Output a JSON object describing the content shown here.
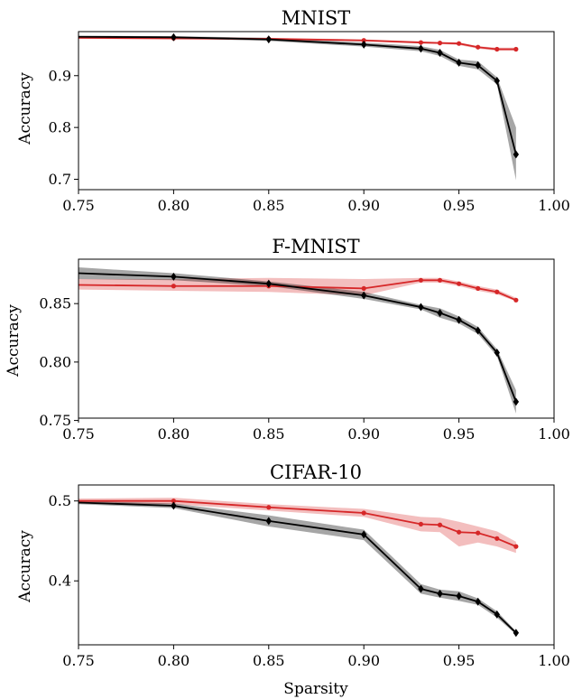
{
  "xlabel": "Sparsity",
  "colors": {
    "black_series": "#000000",
    "red_series": "#d62728"
  },
  "chart_data": [
    {
      "type": "line",
      "title": "MNIST",
      "xlabel": "",
      "ylabel": "Accuracy",
      "xlim": [
        0.75,
        1.0
      ],
      "ylim": [
        0.68,
        0.985
      ],
      "xticks": [
        "0.75",
        "0.80",
        "0.85",
        "0.90",
        "0.95",
        "1.00"
      ],
      "yticks": [
        "0.7",
        "0.8",
        "0.9"
      ],
      "ytick_values": [
        0.7,
        0.8,
        0.9
      ],
      "grid": false,
      "series": [
        {
          "color": "#d62728",
          "marker": "circle",
          "x": [
            0.75,
            0.8,
            0.85,
            0.9,
            0.93,
            0.94,
            0.95,
            0.96,
            0.97,
            0.98
          ],
          "values": [
            0.973,
            0.972,
            0.971,
            0.968,
            0.964,
            0.963,
            0.962,
            0.955,
            0.951,
            0.951
          ],
          "lower": [
            0.971,
            0.97,
            0.969,
            0.966,
            0.962,
            0.961,
            0.959,
            0.952,
            0.948,
            0.948
          ],
          "upper": [
            0.975,
            0.974,
            0.973,
            0.97,
            0.966,
            0.965,
            0.964,
            0.957,
            0.954,
            0.954
          ]
        },
        {
          "color": "#000000",
          "marker": "diamond",
          "x": [
            0.75,
            0.8,
            0.85,
            0.9,
            0.93,
            0.94,
            0.95,
            0.96,
            0.97,
            0.98
          ],
          "values": [
            0.975,
            0.974,
            0.97,
            0.96,
            0.952,
            0.944,
            0.925,
            0.92,
            0.89,
            0.748
          ],
          "lower": [
            0.973,
            0.972,
            0.967,
            0.956,
            0.947,
            0.938,
            0.919,
            0.912,
            0.883,
            0.698
          ],
          "upper": [
            0.977,
            0.976,
            0.973,
            0.964,
            0.957,
            0.95,
            0.931,
            0.928,
            0.897,
            0.8
          ]
        }
      ]
    },
    {
      "type": "line",
      "title": "F-MNIST",
      "xlabel": "",
      "ylabel": "Accuracy",
      "xlim": [
        0.75,
        1.0
      ],
      "ylim": [
        0.752,
        0.888
      ],
      "xticks": [
        "0.75",
        "0.80",
        "0.85",
        "0.90",
        "0.95",
        "1.00"
      ],
      "yticks": [
        "0.75",
        "0.80",
        "0.85"
      ],
      "ytick_values": [
        0.75,
        0.8,
        0.85
      ],
      "grid": false,
      "series": [
        {
          "color": "#d62728",
          "marker": "circle",
          "x": [
            0.75,
            0.8,
            0.85,
            0.9,
            0.93,
            0.94,
            0.95,
            0.96,
            0.97,
            0.98
          ],
          "values": [
            0.866,
            0.865,
            0.865,
            0.863,
            0.87,
            0.87,
            0.867,
            0.863,
            0.86,
            0.853
          ],
          "lower": [
            0.862,
            0.861,
            0.86,
            0.857,
            0.868,
            0.868,
            0.865,
            0.861,
            0.858,
            0.852
          ],
          "upper": [
            0.871,
            0.871,
            0.872,
            0.871,
            0.872,
            0.872,
            0.869,
            0.865,
            0.862,
            0.855
          ]
        },
        {
          "color": "#000000",
          "marker": "diamond",
          "x": [
            0.75,
            0.8,
            0.85,
            0.9,
            0.93,
            0.94,
            0.95,
            0.96,
            0.97,
            0.98
          ],
          "values": [
            0.876,
            0.873,
            0.867,
            0.857,
            0.847,
            0.842,
            0.836,
            0.827,
            0.808,
            0.766
          ],
          "lower": [
            0.871,
            0.87,
            0.865,
            0.854,
            0.845,
            0.838,
            0.833,
            0.824,
            0.805,
            0.756
          ],
          "upper": [
            0.881,
            0.876,
            0.869,
            0.86,
            0.849,
            0.846,
            0.839,
            0.83,
            0.811,
            0.776
          ]
        }
      ]
    },
    {
      "type": "line",
      "title": "CIFAR-10",
      "xlabel": "Sparsity",
      "ylabel": "Accuracy",
      "xlim": [
        0.75,
        1.0
      ],
      "ylim": [
        0.32,
        0.52
      ],
      "xticks": [
        "0.75",
        "0.80",
        "0.85",
        "0.90",
        "0.95",
        "1.00"
      ],
      "yticks": [
        "0.4",
        "0.5"
      ],
      "ytick_values": [
        0.4,
        0.5
      ],
      "grid": false,
      "series": [
        {
          "color": "#d62728",
          "marker": "circle",
          "x": [
            0.75,
            0.8,
            0.85,
            0.9,
            0.93,
            0.94,
            0.95,
            0.96,
            0.97,
            0.98
          ],
          "values": [
            0.5,
            0.5,
            0.492,
            0.485,
            0.471,
            0.47,
            0.461,
            0.46,
            0.453,
            0.443
          ],
          "lower": [
            0.497,
            0.496,
            0.488,
            0.48,
            0.462,
            0.461,
            0.443,
            0.448,
            0.443,
            0.435
          ],
          "upper": [
            0.503,
            0.504,
            0.496,
            0.49,
            0.48,
            0.479,
            0.474,
            0.468,
            0.462,
            0.449
          ]
        },
        {
          "color": "#000000",
          "marker": "diamond",
          "x": [
            0.75,
            0.8,
            0.85,
            0.9,
            0.93,
            0.94,
            0.95,
            0.96,
            0.97,
            0.98
          ],
          "values": [
            0.498,
            0.494,
            0.475,
            0.458,
            0.39,
            0.384,
            0.381,
            0.374,
            0.358,
            0.335
          ],
          "lower": [
            0.496,
            0.491,
            0.468,
            0.451,
            0.384,
            0.379,
            0.375,
            0.37,
            0.354,
            0.333
          ],
          "upper": [
            0.5,
            0.497,
            0.482,
            0.464,
            0.396,
            0.389,
            0.387,
            0.378,
            0.362,
            0.337
          ]
        }
      ]
    }
  ]
}
